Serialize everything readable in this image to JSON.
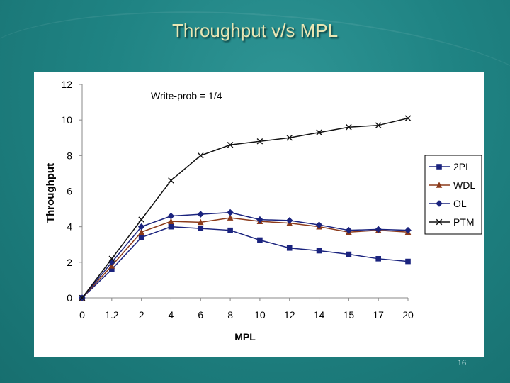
{
  "slide": {
    "title": "Throughput v/s MPL",
    "page_number": "16"
  },
  "colors": {
    "background": "#1f8383",
    "title": "#e9e6b4"
  },
  "chart_data": {
    "type": "line",
    "title": "",
    "annotation": "Write-prob = 1/4",
    "xlabel": "MPL",
    "ylabel": "Throughput",
    "ylim": [
      0,
      12
    ],
    "yticks": [
      0,
      2,
      4,
      6,
      8,
      10,
      12
    ],
    "categories": [
      "0",
      "1.2",
      "2",
      "4",
      "6",
      "8",
      "10",
      "12",
      "14",
      "15",
      "17",
      "20"
    ],
    "legend_position": "right",
    "series": [
      {
        "name": "2PL",
        "color": "#1a237e",
        "marker": "square",
        "values": [
          0,
          1.6,
          3.4,
          4.0,
          3.9,
          3.8,
          3.25,
          2.8,
          2.65,
          2.45,
          2.2,
          2.05
        ]
      },
      {
        "name": "WDL",
        "color": "#8b3a1a",
        "marker": "triangle",
        "values": [
          0,
          1.8,
          3.7,
          4.3,
          4.25,
          4.5,
          4.3,
          4.2,
          4.0,
          3.7,
          3.8,
          3.7
        ]
      },
      {
        "name": "OL",
        "color": "#1a237e",
        "marker": "diamond",
        "values": [
          0,
          2.0,
          4.0,
          4.6,
          4.7,
          4.8,
          4.4,
          4.35,
          4.1,
          3.8,
          3.85,
          3.8
        ]
      },
      {
        "name": "PTM",
        "color": "#111111",
        "marker": "x",
        "values": [
          0,
          2.2,
          4.4,
          6.6,
          8.0,
          8.6,
          8.8,
          9.0,
          9.3,
          9.6,
          9.7,
          10.1
        ]
      }
    ]
  }
}
